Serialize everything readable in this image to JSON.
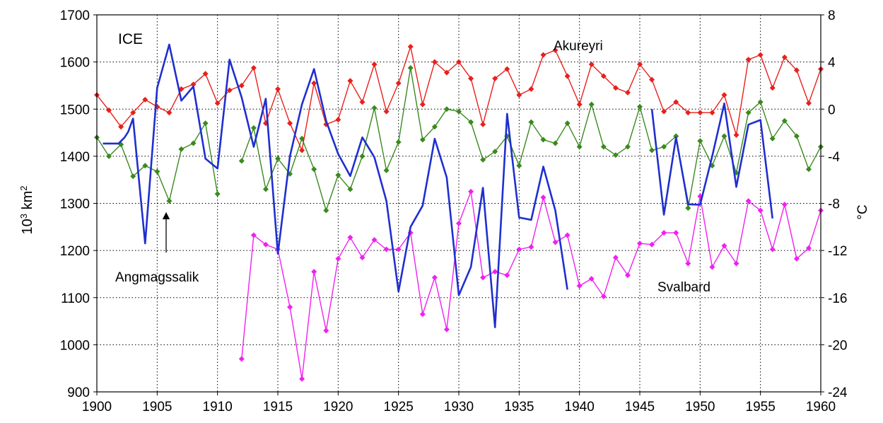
{
  "chart_data": {
    "type": "line",
    "x_range": [
      1900,
      1960
    ],
    "x_ticks": [
      1900,
      1905,
      1910,
      1915,
      1920,
      1925,
      1930,
      1935,
      1940,
      1945,
      1950,
      1955,
      1960
    ],
    "y_left": {
      "label_base": "10",
      "label_sup1": "3",
      "label_unit": " km",
      "label_sup2": "2",
      "range": [
        900,
        1700
      ],
      "ticks": [
        900,
        1000,
        1100,
        1200,
        1300,
        1400,
        1500,
        1600,
        1700
      ]
    },
    "y_right": {
      "label": "°C",
      "range": [
        -24,
        8
      ],
      "ticks": [
        -24,
        -20,
        -16,
        -12,
        -8,
        -4,
        0,
        4,
        8
      ]
    },
    "grid": true,
    "series": [
      {
        "name": "ICE",
        "color": "#1f2fd0",
        "axis": "left",
        "markers": false,
        "points": [
          [
            1900.5,
            1427
          ],
          [
            1901,
            1427
          ],
          [
            1901.8,
            1427
          ],
          [
            1902.3,
            1440
          ],
          [
            1902.6,
            1452
          ],
          [
            1903,
            1480
          ],
          [
            1903.3,
            1400
          ],
          [
            1904,
            1215
          ],
          [
            1905,
            1545
          ],
          [
            1906,
            1637
          ],
          [
            1907,
            1518
          ],
          [
            1908,
            1548
          ],
          [
            1909,
            1395
          ],
          [
            1910,
            1374
          ],
          [
            1911,
            1605
          ],
          [
            1912,
            1525
          ],
          [
            1913,
            1420
          ],
          [
            1914,
            1522
          ],
          [
            1915,
            1193
          ],
          [
            1916,
            1400
          ],
          [
            1917,
            1510
          ],
          [
            1918,
            1585
          ],
          [
            1919,
            1475
          ],
          [
            1920,
            1405
          ],
          [
            1921,
            1358
          ],
          [
            1922,
            1440
          ],
          [
            1923,
            1398
          ],
          [
            1924,
            1305
          ],
          [
            1925,
            1113
          ],
          [
            1926,
            1250
          ],
          [
            1927,
            1295
          ],
          [
            1928,
            1437
          ],
          [
            1929,
            1355
          ],
          [
            1930,
            1105
          ],
          [
            1931,
            1165
          ],
          [
            1932,
            1333
          ],
          [
            1933,
            1037
          ],
          [
            1934,
            1490
          ],
          [
            1935,
            1270
          ],
          [
            1936,
            1265
          ],
          [
            1937,
            1378
          ],
          [
            1938,
            1285
          ],
          [
            1939,
            1117
          ],
          null,
          [
            1946,
            1500
          ],
          [
            1947,
            1276
          ],
          [
            1948,
            1440
          ],
          [
            1949,
            1298
          ],
          [
            1950,
            1297
          ],
          [
            1951,
            1400
          ],
          [
            1952,
            1512
          ],
          [
            1953,
            1335
          ],
          [
            1954,
            1467
          ],
          [
            1955,
            1477
          ],
          [
            1956,
            1268
          ]
        ]
      },
      {
        "name": "Akureyri",
        "color": "#e8201c",
        "axis": "right",
        "markers": true,
        "points": [
          [
            1900,
            1.2
          ],
          [
            1901,
            -0.1
          ],
          [
            1902,
            -1.5
          ],
          [
            1903,
            -0.3
          ],
          [
            1904,
            0.8
          ],
          [
            1905,
            0.2
          ],
          [
            1906,
            -0.3
          ],
          [
            1907,
            1.7
          ],
          [
            1908,
            2.1
          ],
          [
            1909,
            3.0
          ],
          [
            1910,
            0.5
          ],
          [
            1911,
            1.6
          ],
          [
            1912,
            2.0
          ],
          [
            1913,
            3.5
          ],
          [
            1914,
            -1.2
          ],
          [
            1915,
            1.7
          ],
          [
            1916,
            -1.2
          ],
          [
            1917,
            -3.5
          ],
          [
            1918,
            2.2
          ],
          [
            1919,
            -1.3
          ],
          [
            1920,
            -0.9
          ],
          [
            1921,
            2.4
          ],
          [
            1922,
            0.6
          ],
          [
            1923,
            3.8
          ],
          [
            1924,
            -0.2
          ],
          [
            1925,
            2.2
          ],
          [
            1926,
            5.3
          ],
          [
            1927,
            0.4
          ],
          [
            1928,
            4.0
          ],
          [
            1929,
            3.1
          ],
          [
            1930,
            4.0
          ],
          [
            1931,
            2.6
          ],
          [
            1932,
            -1.3
          ],
          [
            1933,
            2.6
          ],
          [
            1934,
            3.4
          ],
          [
            1935,
            1.2
          ],
          [
            1936,
            1.7
          ],
          [
            1937,
            4.6
          ],
          [
            1938,
            5.0
          ],
          [
            1939,
            2.8
          ],
          [
            1940,
            0.4
          ],
          [
            1941,
            3.8
          ],
          [
            1942,
            2.8
          ],
          [
            1943,
            1.8
          ],
          [
            1944,
            1.4
          ],
          [
            1945,
            3.8
          ],
          [
            1946,
            2.5
          ],
          [
            1947,
            -0.2
          ],
          [
            1948,
            0.6
          ],
          [
            1949,
            -0.3
          ],
          [
            1950,
            -0.3
          ],
          [
            1951,
            -0.3
          ],
          [
            1952,
            1.2
          ],
          [
            1953,
            -2.2
          ],
          [
            1954,
            4.2
          ],
          [
            1955,
            4.6
          ],
          [
            1956,
            1.8
          ],
          [
            1957,
            4.4
          ],
          [
            1958,
            3.3
          ],
          [
            1959,
            0.5
          ],
          [
            1960,
            3.4
          ]
        ]
      },
      {
        "name": "Angmagssalik",
        "color": "#3a8a1e",
        "axis": "right",
        "markers": true,
        "points": [
          [
            1900,
            -2.4
          ],
          [
            1901,
            -4.0
          ],
          [
            1902,
            -3.0
          ],
          [
            1903,
            -5.7
          ],
          [
            1904,
            -4.8
          ],
          [
            1905,
            -5.3
          ],
          [
            1906,
            -7.8
          ],
          [
            1907,
            -3.4
          ],
          [
            1908,
            -2.9
          ],
          [
            1909,
            -1.2
          ],
          [
            1910,
            -7.2
          ],
          null,
          [
            1912,
            -4.4
          ],
          [
            1913,
            -1.6
          ],
          [
            1914,
            -6.8
          ],
          [
            1915,
            -4.2
          ],
          [
            1916,
            -5.5
          ],
          [
            1917,
            -2.5
          ],
          [
            1918,
            -5.1
          ],
          [
            1919,
            -8.6
          ],
          [
            1920,
            -5.6
          ],
          [
            1921,
            -6.8
          ],
          [
            1922,
            -4.0
          ],
          [
            1923,
            0.1
          ],
          [
            1924,
            -5.2
          ],
          [
            1925,
            -2.8
          ],
          [
            1926,
            3.5
          ],
          [
            1927,
            -2.6
          ],
          [
            1928,
            -1.5
          ],
          [
            1929,
            0.0
          ],
          [
            1930,
            -0.2
          ],
          [
            1931,
            -1.1
          ],
          [
            1932,
            -4.3
          ],
          [
            1933,
            -3.6
          ],
          [
            1934,
            -2.3
          ],
          [
            1935,
            -4.8
          ],
          [
            1936,
            -1.1
          ],
          [
            1937,
            -2.6
          ],
          [
            1938,
            -2.9
          ],
          [
            1939,
            -1.2
          ],
          [
            1940,
            -3.2
          ],
          [
            1941,
            0.4
          ],
          [
            1942,
            -3.2
          ],
          [
            1943,
            -3.9
          ],
          [
            1944,
            -3.2
          ],
          [
            1945,
            0.2
          ],
          [
            1946,
            -3.5
          ],
          [
            1947,
            -3.2
          ],
          [
            1948,
            -2.3
          ],
          [
            1949,
            -8.4
          ],
          [
            1950,
            -2.7
          ],
          [
            1951,
            -4.8
          ],
          [
            1952,
            -2.3
          ],
          [
            1953,
            -5.4
          ],
          [
            1954,
            -0.3
          ],
          [
            1955,
            0.6
          ],
          [
            1956,
            -2.5
          ],
          [
            1957,
            -1.0
          ],
          [
            1958,
            -2.3
          ],
          [
            1959,
            -5.1
          ],
          [
            1960,
            -3.2
          ]
        ]
      },
      {
        "name": "Svalbard",
        "color": "#f020f0",
        "axis": "right",
        "markers": true,
        "points": [
          [
            1912,
            -21.2
          ],
          [
            1913,
            -10.7
          ],
          [
            1914,
            -11.5
          ],
          [
            1915,
            -11.9
          ],
          [
            1916,
            -16.8
          ],
          [
            1917,
            -22.9
          ],
          [
            1918,
            -13.8
          ],
          [
            1919,
            -18.8
          ],
          [
            1920,
            -12.7
          ],
          [
            1921,
            -10.9
          ],
          [
            1922,
            -12.6
          ],
          [
            1923,
            -11.1
          ],
          [
            1924,
            -11.9
          ],
          [
            1925,
            -11.9
          ],
          [
            1926,
            -10.5
          ],
          [
            1927,
            -17.4
          ],
          [
            1928,
            -14.3
          ],
          [
            1929,
            -18.7
          ],
          [
            1930,
            -9.7
          ],
          [
            1931,
            -7.0
          ],
          [
            1932,
            -14.3
          ],
          [
            1933,
            -13.8
          ],
          [
            1934,
            -14.1
          ],
          [
            1935,
            -11.9
          ],
          [
            1936,
            -11.7
          ],
          [
            1937,
            -7.5
          ],
          [
            1938,
            -11.3
          ],
          [
            1939,
            -10.7
          ],
          [
            1940,
            -15.0
          ],
          [
            1941,
            -14.4
          ],
          [
            1942,
            -15.9
          ],
          [
            1943,
            -12.6
          ],
          [
            1944,
            -14.1
          ],
          [
            1945,
            -11.4
          ],
          [
            1946,
            -11.5
          ],
          [
            1947,
            -10.5
          ],
          [
            1948,
            -10.5
          ],
          [
            1949,
            -13.1
          ],
          [
            1950,
            -7.4
          ],
          [
            1951,
            -13.4
          ],
          [
            1952,
            -11.6
          ],
          [
            1953,
            -13.1
          ],
          [
            1954,
            -7.8
          ],
          [
            1955,
            -8.6
          ],
          [
            1956,
            -11.9
          ],
          [
            1957,
            -8.1
          ],
          [
            1958,
            -12.7
          ],
          [
            1959,
            -11.8
          ],
          [
            1960,
            -8.6
          ]
        ]
      }
    ],
    "annotations": {
      "ice": "ICE",
      "akureyri": "Akureyri",
      "angmagssalik": "Angmagssalik",
      "svalbard": "Svalbard"
    }
  }
}
